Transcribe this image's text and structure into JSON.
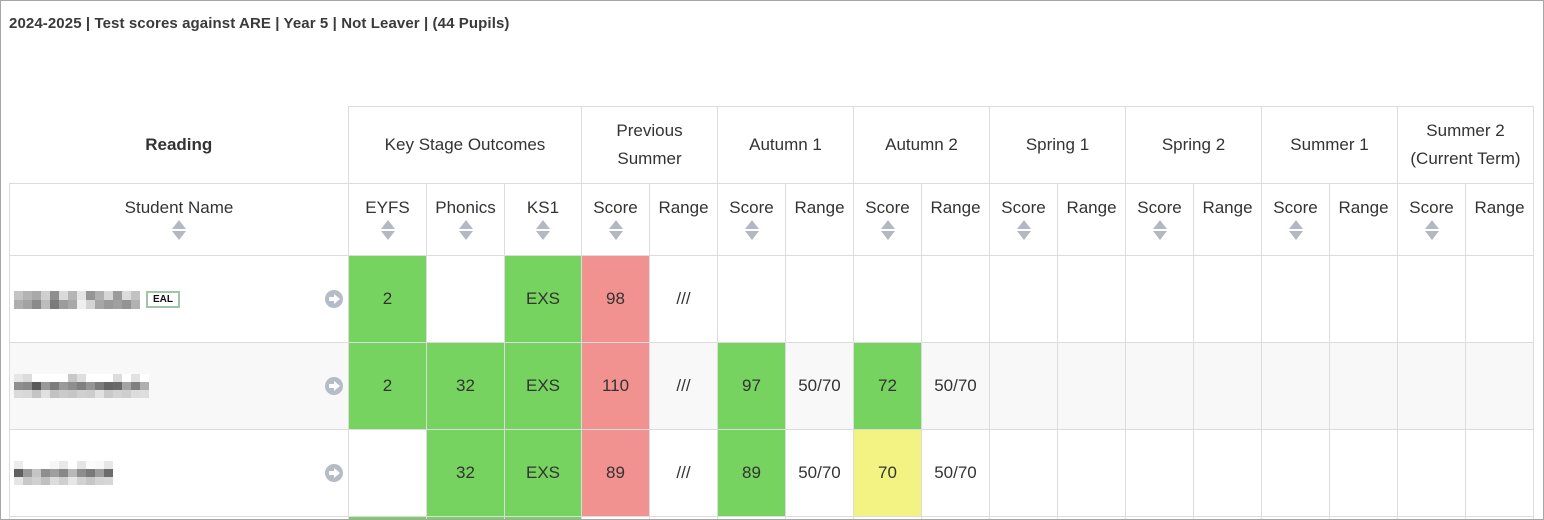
{
  "report": {
    "title": "2024-2025 | Test scores against ARE | Year 5 | Not Leaver | (44 Pupils)"
  },
  "table": {
    "subject_label": "Reading",
    "groups": [
      {
        "label": "Key Stage Outcomes",
        "span": 3
      },
      {
        "label": "Previous Summer",
        "span": 2
      },
      {
        "label": "Autumn 1",
        "span": 2
      },
      {
        "label": "Autumn 2",
        "span": 2
      },
      {
        "label": "Spring 1",
        "span": 2
      },
      {
        "label": "Spring 2",
        "span": 2
      },
      {
        "label": "Summer 1",
        "span": 2
      },
      {
        "label": "Summer 2 (Current Term)",
        "span": 2
      }
    ],
    "columns": {
      "student_name": "Student Name",
      "eyfs": "EYFS",
      "phonics": "Phonics",
      "ks1": "KS1",
      "score": "Score",
      "range": "Range"
    },
    "rows": [
      {
        "name": "[redacted]",
        "badge": "EAL",
        "cells": [
          "2",
          "",
          "EXS",
          "98",
          "///",
          "",
          "",
          "",
          "",
          "",
          "",
          "",
          "",
          "",
          "",
          "",
          ""
        ],
        "colors": [
          "g",
          "",
          "g",
          "r",
          "",
          "",
          "",
          "",
          "",
          "",
          "",
          "",
          "",
          "",
          "",
          "",
          ""
        ]
      },
      {
        "name": "[redacted]",
        "badge": "",
        "cells": [
          "2",
          "32",
          "EXS",
          "110",
          "///",
          "97",
          "50/70",
          "72",
          "50/70",
          "",
          "",
          "",
          "",
          "",
          "",
          "",
          ""
        ],
        "colors": [
          "g",
          "g",
          "g",
          "r",
          "",
          "g",
          "",
          "g",
          "",
          "",
          "",
          "",
          "",
          "",
          "",
          "",
          ""
        ]
      },
      {
        "name": "[redacted]",
        "badge": "",
        "cells": [
          "",
          "32",
          "EXS",
          "89",
          "///",
          "89",
          "50/70",
          "70",
          "50/70",
          "",
          "",
          "",
          "",
          "",
          "",
          "",
          ""
        ],
        "colors": [
          "",
          "g",
          "g",
          "r",
          "",
          "g",
          "",
          "y",
          "",
          "",
          "",
          "",
          "",
          "",
          "",
          "",
          ""
        ]
      }
    ]
  },
  "colors": {
    "green": "#76d35f",
    "red": "#f29290",
    "yellow": "#f3f383"
  }
}
